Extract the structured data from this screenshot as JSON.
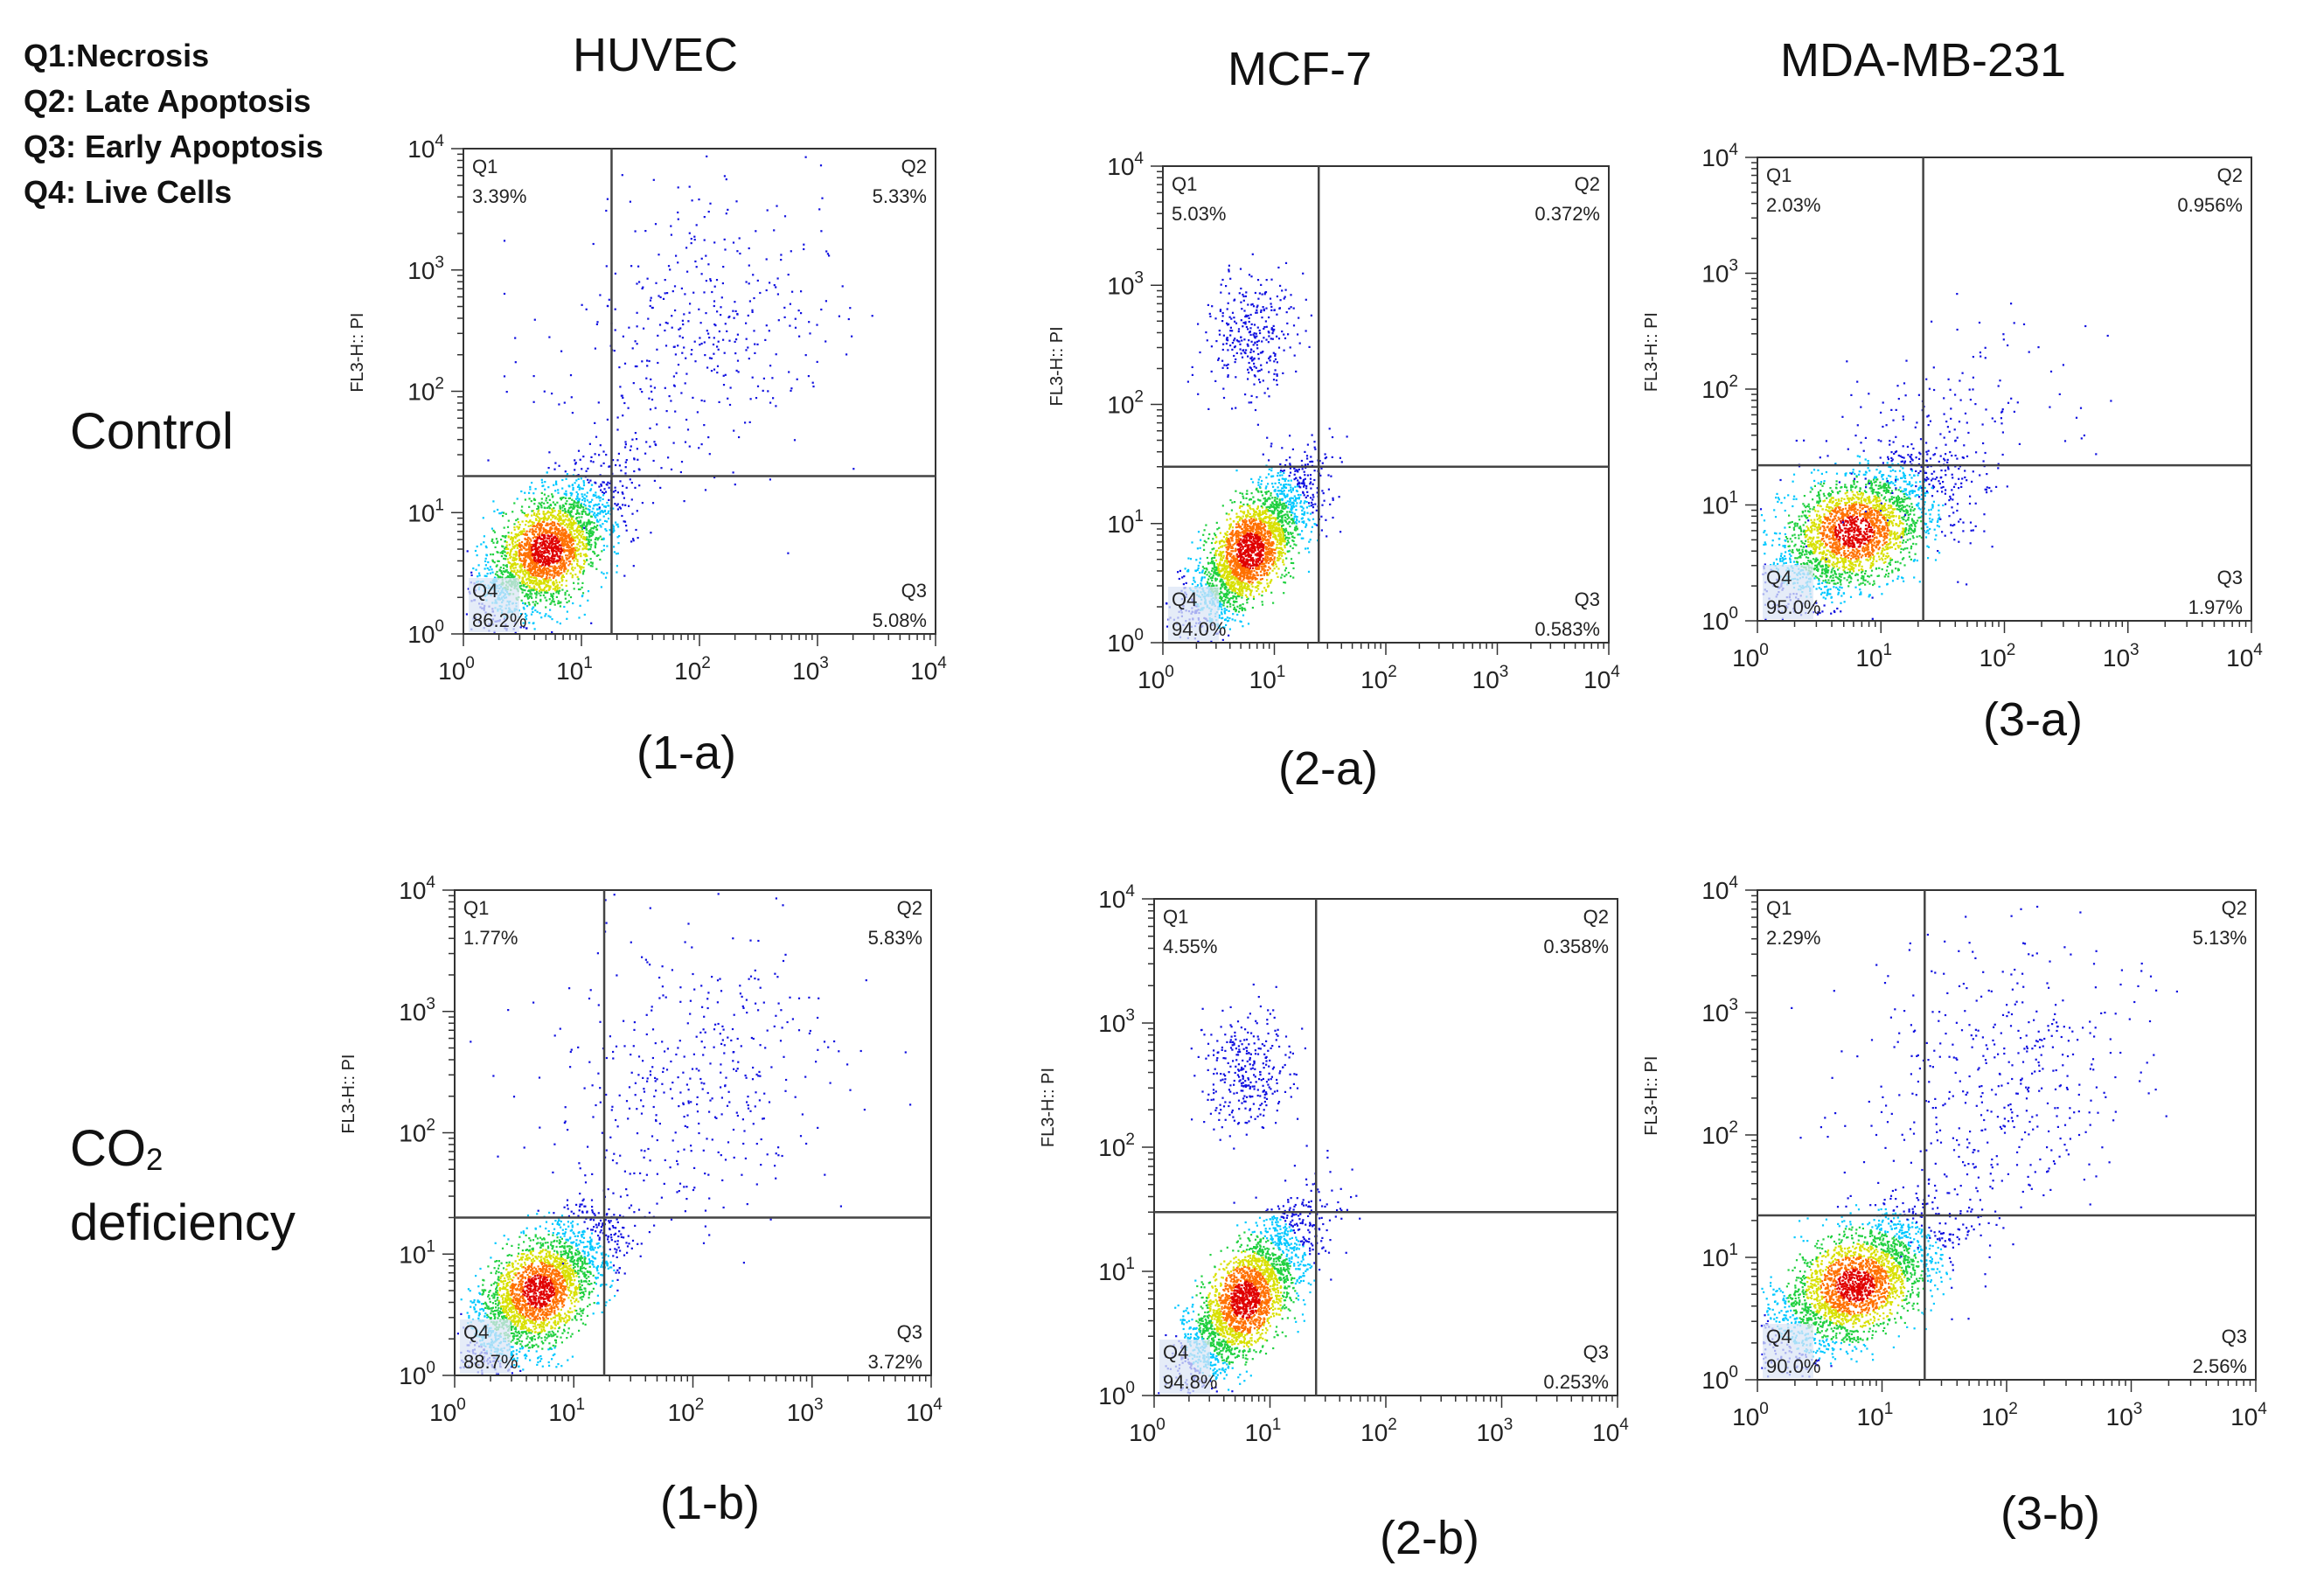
{
  "legend": {
    "q1": "Q1:Necrosis",
    "q2": "Q2: Late Apoptosis",
    "q3": "Q3: Early Apoptosis",
    "q4": "Q4: Live Cells"
  },
  "columns": [
    "HUVEC",
    "MCF-7",
    "MDA-MB-231"
  ],
  "rows": {
    "control": "Control",
    "co2_main": "CO",
    "co2_sub": "2",
    "co2_line2": "deficiency"
  },
  "colors": {
    "axis": "#333333",
    "gate": "#444444",
    "dots": [
      "#1010e0",
      "#00c8ff",
      "#20d040",
      "#d8e000",
      "#ff7000",
      "#e00000"
    ]
  },
  "chart_data": [
    {
      "id": "1-a",
      "type": "scatter",
      "caption": "(1-a)",
      "cell_line": "HUVEC",
      "condition": "Control",
      "ylabel": "FL3-H:: PI",
      "xlim": [
        1,
        10000
      ],
      "ylim": [
        1,
        10000
      ],
      "tick_base": "10",
      "tick_exps": [
        "0",
        "1",
        "2",
        "3",
        "4"
      ],
      "gate": {
        "x": 18,
        "y": 20
      },
      "quadrants": {
        "Q1": "3.39%",
        "Q2": "5.33%",
        "Q3": "5.08%",
        "Q4": "86.2%"
      },
      "populations": [
        {
          "cx": 5,
          "cy": 5,
          "sx": 0.3,
          "sy": 0.3,
          "rho": 0.6,
          "n": 2600
        },
        {
          "cx": 100,
          "cy": 300,
          "sx": 0.6,
          "sy": 0.6,
          "rho": 0.2,
          "n": 420
        }
      ]
    },
    {
      "id": "2-a",
      "type": "scatter",
      "caption": "(2-a)",
      "cell_line": "MCF-7",
      "condition": "Control",
      "ylabel": "FL3-H:: PI",
      "xlim": [
        1,
        10000
      ],
      "ylim": [
        1,
        10000
      ],
      "tick_base": "10",
      "tick_exps": [
        "0",
        "1",
        "2",
        "3",
        "4"
      ],
      "gate": {
        "x": 25,
        "y": 30
      },
      "quadrants": {
        "Q1": "5.03%",
        "Q2": "0.372%",
        "Q3": "0.583%",
        "Q4": "94.0%"
      },
      "populations": [
        {
          "cx": 6,
          "cy": 6,
          "sx": 0.28,
          "sy": 0.34,
          "rho": 0.75,
          "n": 2600
        },
        {
          "cx": 6,
          "cy": 400,
          "sx": 0.2,
          "sy": 0.25,
          "rho": 0.1,
          "n": 320
        }
      ]
    },
    {
      "id": "3-a",
      "type": "scatter",
      "caption": "(3-a)",
      "cell_line": "MDA-MB-231",
      "condition": "Control",
      "ylabel": "FL3-H:: PI",
      "xlim": [
        1,
        10000
      ],
      "ylim": [
        1,
        10000
      ],
      "tick_base": "10",
      "tick_exps": [
        "0",
        "1",
        "2",
        "3",
        "4"
      ],
      "gate": {
        "x": 22,
        "y": 22
      },
      "quadrants": {
        "Q1": "2.03%",
        "Q2": "0.956%",
        "Q3": "1.97%",
        "Q4": "95.0%"
      },
      "populations": [
        {
          "cx": 6,
          "cy": 6,
          "sx": 0.35,
          "sy": 0.3,
          "rho": 0.5,
          "n": 2600
        },
        {
          "cx": 30,
          "cy": 40,
          "sx": 0.5,
          "sy": 0.5,
          "rho": 0.3,
          "n": 200
        }
      ]
    },
    {
      "id": "1-b",
      "type": "scatter",
      "caption": "(1-b)",
      "cell_line": "HUVEC",
      "condition": "CO2 deficiency",
      "ylabel": "FL3-H:: PI",
      "xlim": [
        1,
        10000
      ],
      "ylim": [
        1,
        10000
      ],
      "tick_base": "10",
      "tick_exps": [
        "0",
        "1",
        "2",
        "3",
        "4"
      ],
      "gate": {
        "x": 18,
        "y": 20
      },
      "quadrants": {
        "Q1": "1.77%",
        "Q2": "5.83%",
        "Q3": "3.72%",
        "Q4": "88.7%"
      },
      "populations": [
        {
          "cx": 5,
          "cy": 5,
          "sx": 0.3,
          "sy": 0.3,
          "rho": 0.6,
          "n": 2600
        },
        {
          "cx": 100,
          "cy": 300,
          "sx": 0.6,
          "sy": 0.6,
          "rho": 0.2,
          "n": 420
        }
      ]
    },
    {
      "id": "2-b",
      "type": "scatter",
      "caption": "(2-b)",
      "cell_line": "MCF-7",
      "condition": "CO2 deficiency",
      "ylabel": "FL3-H:: PI",
      "xlim": [
        1,
        10000
      ],
      "ylim": [
        1,
        10000
      ],
      "tick_base": "10",
      "tick_exps": [
        "0",
        "1",
        "2",
        "3",
        "4"
      ],
      "gate": {
        "x": 25,
        "y": 30
      },
      "quadrants": {
        "Q1": "4.55%",
        "Q2": "0.358%",
        "Q3": "0.253%",
        "Q4": "94.8%"
      },
      "populations": [
        {
          "cx": 6,
          "cy": 6,
          "sx": 0.28,
          "sy": 0.34,
          "rho": 0.75,
          "n": 2600
        },
        {
          "cx": 6,
          "cy": 400,
          "sx": 0.2,
          "sy": 0.25,
          "rho": 0.1,
          "n": 320
        }
      ]
    },
    {
      "id": "3-b",
      "type": "scatter",
      "caption": "(3-b)",
      "cell_line": "MDA-MB-231",
      "condition": "CO2 deficiency",
      "ylabel": "FL3-H:: PI",
      "xlim": [
        1,
        10000
      ],
      "ylim": [
        1,
        10000
      ],
      "tick_base": "10",
      "tick_exps": [
        "0",
        "1",
        "2",
        "3",
        "4"
      ],
      "gate": {
        "x": 22,
        "y": 22
      },
      "quadrants": {
        "Q1": "2.29%",
        "Q2": "5.13%",
        "Q3": "2.56%",
        "Q4": "90.0%"
      },
      "populations": [
        {
          "cx": 6,
          "cy": 6,
          "sx": 0.35,
          "sy": 0.3,
          "rho": 0.6,
          "n": 2600
        },
        {
          "cx": 80,
          "cy": 250,
          "sx": 0.6,
          "sy": 0.6,
          "rho": 0.3,
          "n": 460
        }
      ]
    }
  ]
}
